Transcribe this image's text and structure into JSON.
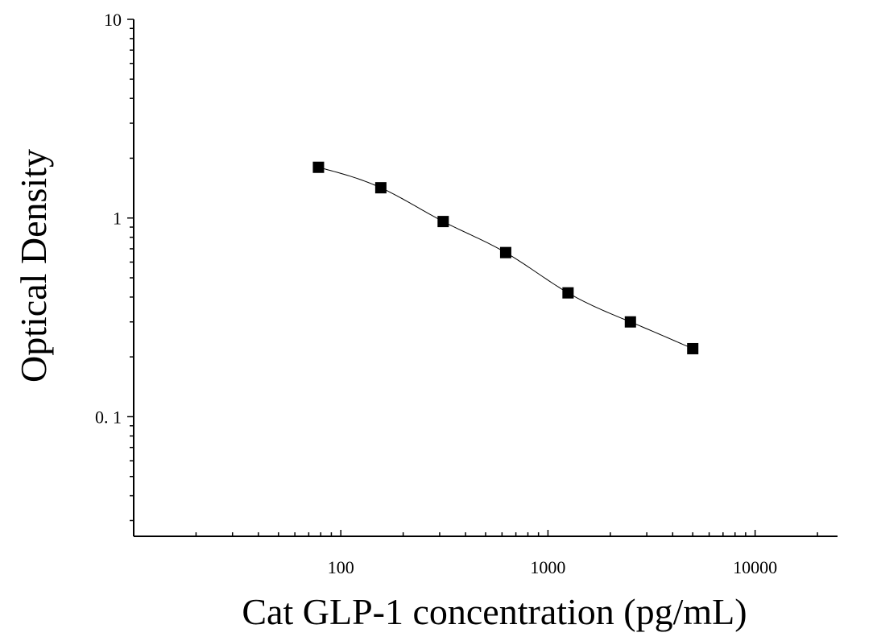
{
  "chart_data": {
    "type": "scatter",
    "title": "",
    "xlabel": "Cat GLP-1 concentration (pg/mL)",
    "ylabel": "Optical Density",
    "xscale": "log",
    "yscale": "log",
    "xlim": [
      10,
      25000
    ],
    "ylim": [
      0.025,
      10
    ],
    "xticks": [
      {
        "value": 100,
        "label": "100"
      },
      {
        "value": 1000,
        "label": "1000"
      },
      {
        "value": 10000,
        "label": "10000"
      }
    ],
    "yticks": [
      {
        "value": 10,
        "label": "10"
      },
      {
        "value": 1,
        "label": "1"
      },
      {
        "value": 0.1,
        "label": "0. 1"
      }
    ],
    "grid": false,
    "legend": "none",
    "series": [
      {
        "x": [
          78,
          156,
          312,
          625,
          1250,
          2500,
          5000
        ],
        "y": [
          1.8,
          1.42,
          0.96,
          0.67,
          0.42,
          0.3,
          0.22
        ]
      }
    ],
    "fit_curve": true,
    "marker": "square",
    "color": "#000000"
  }
}
